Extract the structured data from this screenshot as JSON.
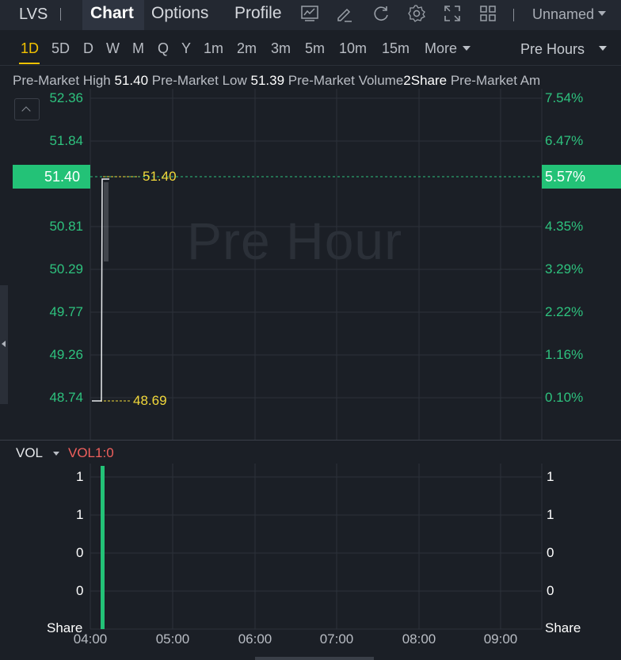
{
  "header": {
    "ticker": "LVS",
    "tabs": [
      "Chart",
      "Options",
      "Profile"
    ],
    "active_tab": "Chart",
    "tool_icons": [
      "indicator-icon",
      "draw-icon",
      "refresh-icon",
      "settings-icon",
      "fullscreen-icon",
      "layout-grid-icon"
    ],
    "layout_name": "Unnamed"
  },
  "periods": {
    "items": [
      "1D",
      "5D",
      "D",
      "W",
      "M",
      "Q",
      "Y",
      "1m",
      "2m",
      "3m",
      "5m",
      "10m",
      "15m",
      "More"
    ],
    "active": "1D",
    "session": "Pre Hours"
  },
  "info": {
    "high_label": "Pre-Market High",
    "high_value": "51.40",
    "low_label": "Pre-Market Low",
    "low_value": "51.39",
    "volume_label": "Pre-Market Volume",
    "volume_value": "2Share",
    "amount_label": "Pre-Market Am"
  },
  "price_axis": [
    "52.36",
    "51.84",
    "51.40",
    "50.81",
    "50.29",
    "49.77",
    "49.26",
    "48.74"
  ],
  "pct_axis": [
    "7.54%",
    "6.47%",
    "5.57%",
    "4.35%",
    "3.29%",
    "2.22%",
    "1.16%",
    "0.10%"
  ],
  "current_price": "51.40",
  "current_pct": "5.57%",
  "high_marker": "51.40",
  "low_marker": "48.69",
  "watermark": "Pre Hour",
  "volume_pane": {
    "title": "VOL",
    "indicator": "VOL1:0",
    "left_labels": [
      "1",
      "1",
      "0",
      "0"
    ],
    "right_labels": [
      "1",
      "1",
      "0",
      "0"
    ],
    "unit": "Share"
  },
  "time_axis": [
    "04:00",
    "05:00",
    "06:00",
    "07:00",
    "08:00",
    "09:00"
  ],
  "colors": {
    "up": "#23c277",
    "marker": "#f2d83a",
    "accent": "#f2c200",
    "vol_indicator": "#f0605d"
  }
}
